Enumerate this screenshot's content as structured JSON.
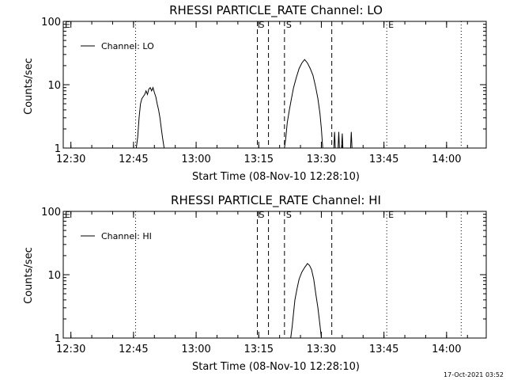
{
  "footer": {
    "timestamp": "17-Oct-2021 03:52"
  },
  "chart_data": [
    {
      "type": "line",
      "title": "RHESSI PARTICLE_RATE Channel: LO",
      "xlabel": "Start Time (08-Nov-10 12:28:10)",
      "ylabel": "Counts/sec",
      "y_scale": "log",
      "ylim": [
        1,
        100
      ],
      "xlim": [
        "12:28:10",
        "14:09:30"
      ],
      "y_ticks": [
        "1",
        "10",
        "100"
      ],
      "x_ticks": [
        "12:30",
        "12:45",
        "13:00",
        "13:15",
        "13:30",
        "13:45",
        "14:00"
      ],
      "legend": {
        "label": "Channel: LO",
        "placement": "top-left"
      },
      "flags": [
        {
          "time": "12:28:10",
          "label": "E"
        },
        {
          "time": "13:14:40",
          "label": "S"
        },
        {
          "time": "13:21:10",
          "label": "S"
        },
        {
          "time": "13:45:40",
          "label": "E"
        }
      ],
      "dashed_lines": [
        "13:14:40",
        "13:17:20",
        "13:21:10",
        "13:32:30"
      ],
      "dotted_lines": [
        "12:45:30",
        "13:45:40",
        "14:03:30"
      ],
      "series": [
        {
          "name": "Channel: LO",
          "segments": [
            [
              [
                "12:45:40",
                1
              ],
              [
                "12:46:00",
                1.5
              ],
              [
                "12:46:20",
                3
              ],
              [
                "12:46:40",
                5
              ],
              [
                "12:47:00",
                6
              ],
              [
                "12:47:20",
                6.5
              ],
              [
                "12:47:40",
                7
              ],
              [
                "12:48:00",
                8
              ],
              [
                "12:48:20",
                7
              ],
              [
                "12:48:40",
                8.5
              ],
              [
                "12:49:00",
                9
              ],
              [
                "12:49:20",
                8
              ],
              [
                "12:49:40",
                9
              ],
              [
                "12:50:00",
                7.5
              ],
              [
                "12:50:20",
                6.5
              ],
              [
                "12:50:40",
                5
              ],
              [
                "12:51:00",
                4
              ],
              [
                "12:51:20",
                3
              ],
              [
                "12:51:40",
                2
              ],
              [
                "12:52:00",
                1.4
              ],
              [
                "12:52:20",
                1
              ]
            ],
            [
              [
                "13:21:10",
                1
              ],
              [
                "13:21:30",
                1.5
              ],
              [
                "13:21:50",
                2.5
              ],
              [
                "13:22:20",
                4
              ],
              [
                "13:22:50",
                6
              ],
              [
                "13:23:20",
                9
              ],
              [
                "13:24:00",
                13
              ],
              [
                "13:24:40",
                18
              ],
              [
                "13:25:20",
                22
              ],
              [
                "13:26:00",
                25
              ],
              [
                "13:26:40",
                22
              ],
              [
                "13:27:20",
                18
              ],
              [
                "13:28:00",
                14
              ],
              [
                "13:28:40",
                9
              ],
              [
                "13:29:10",
                6
              ],
              [
                "13:29:40",
                3.5
              ],
              [
                "13:30:00",
                2
              ],
              [
                "13:30:20",
                1
              ]
            ],
            [
              [
                "13:33:00",
                1
              ],
              [
                "13:33:10",
                1.8
              ],
              [
                "13:33:20",
                1
              ]
            ],
            [
              [
                "13:34:00",
                1
              ],
              [
                "13:34:10",
                1.8
              ],
              [
                "13:34:20",
                1
              ]
            ],
            [
              [
                "13:34:50",
                1
              ],
              [
                "13:35:00",
                1.7
              ],
              [
                "13:35:10",
                1
              ]
            ],
            [
              [
                "13:37:00",
                1
              ],
              [
                "13:37:10",
                1.8
              ],
              [
                "13:37:20",
                1
              ]
            ]
          ]
        }
      ]
    },
    {
      "type": "line",
      "title": "RHESSI PARTICLE_RATE Channel: HI",
      "xlabel": "Start Time (08-Nov-10 12:28:10)",
      "ylabel": "Counts/sec",
      "y_scale": "log",
      "ylim": [
        1,
        100
      ],
      "xlim": [
        "12:28:10",
        "14:09:30"
      ],
      "y_ticks": [
        "1",
        "10",
        "100"
      ],
      "x_ticks": [
        "12:30",
        "12:45",
        "13:00",
        "13:15",
        "13:30",
        "13:45",
        "14:00"
      ],
      "legend": {
        "label": "Channel: HI",
        "placement": "top-left"
      },
      "flags": [
        {
          "time": "12:28:10",
          "label": "E"
        },
        {
          "time": "13:14:40",
          "label": "S"
        },
        {
          "time": "13:21:10",
          "label": "S"
        },
        {
          "time": "13:45:40",
          "label": "E"
        }
      ],
      "dashed_lines": [
        "13:14:40",
        "13:17:20",
        "13:21:10",
        "13:32:30"
      ],
      "dotted_lines": [
        "12:45:30",
        "13:45:40",
        "14:03:30"
      ],
      "series": [
        {
          "name": "Channel: HI",
          "segments": [
            [
              [
                "13:22:40",
                1
              ],
              [
                "13:23:00",
                1.5
              ],
              [
                "13:23:20",
                2.5
              ],
              [
                "13:23:40",
                4
              ],
              [
                "13:24:10",
                6
              ],
              [
                "13:24:40",
                8.5
              ],
              [
                "13:25:20",
                11
              ],
              [
                "13:26:00",
                13
              ],
              [
                "13:26:40",
                15
              ],
              [
                "13:27:10",
                14
              ],
              [
                "13:27:40",
                12
              ],
              [
                "13:28:10",
                8.5
              ],
              [
                "13:28:40",
                5
              ],
              [
                "13:29:10",
                3
              ],
              [
                "13:29:40",
                1.6
              ],
              [
                "13:30:00",
                1
              ]
            ]
          ]
        }
      ]
    }
  ]
}
